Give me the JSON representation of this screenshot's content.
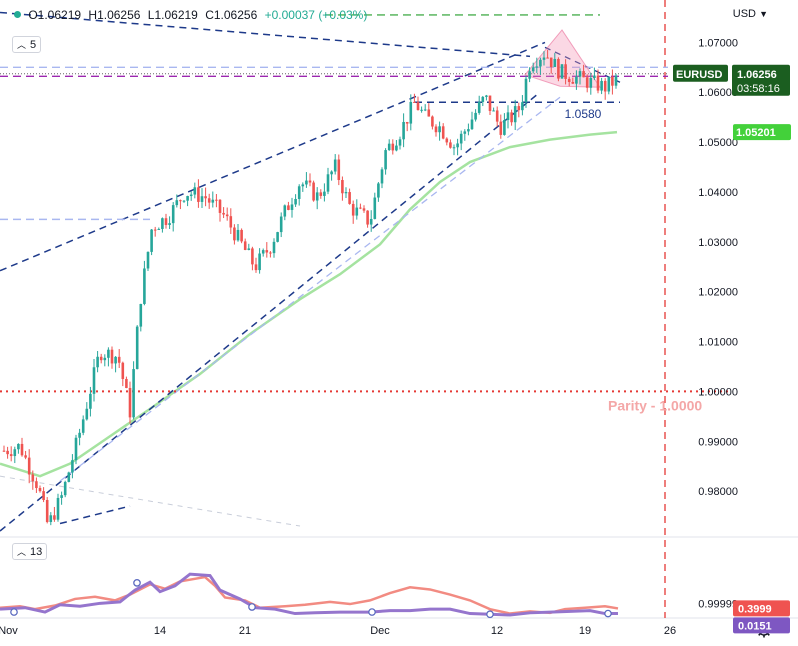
{
  "instrument": {
    "symbol": "EURUSD",
    "currency": "USD",
    "ohlc": {
      "open": "O1.06219",
      "high": "H1.06256",
      "low": "L1.06219",
      "close": "C1.06256",
      "change": "+0.00037 (+0.03%)"
    },
    "last_price": "1.06256",
    "countdown": "03:58:16"
  },
  "pane_labels": {
    "main_setting": "5",
    "osc_setting": "13"
  },
  "colors": {
    "up": "#26a69a",
    "down": "#ef5350",
    "ma": "#a5e3a0",
    "trend": "#1e3a8a",
    "trend_light": "#a9b7f0",
    "purple": "#9c27b0",
    "green_dash": "#4caf50",
    "parity": "#e53935",
    "parity_text": "#f4a7a7",
    "osc_red": "#f28b82",
    "osc_purple": "#9575cd"
  },
  "chart_data": [
    {
      "type": "candlestick",
      "title": "EURUSD",
      "x": [
        "Nov",
        "14",
        "21",
        "Dec",
        "12",
        "19",
        "26"
      ],
      "y_ticks": [
        "0.98000",
        "0.99000",
        "1.00000",
        "1.01000",
        "1.02000",
        "1.03000",
        "1.04000",
        "1.05000",
        "1.06000",
        "1.07000"
      ],
      "ylim": [
        0.971,
        1.0785
      ],
      "grid": false,
      "series": [
        {
          "name": "EURUSD",
          "label": "1.06256"
        },
        {
          "name": "",
          "label": "1.05201"
        }
      ],
      "annotations": {
        "support_label": "1.0580",
        "parity_label": "Parity - 1.0000",
        "parity_level": 1.0
      }
    },
    {
      "type": "line",
      "series": [
        {
          "name": "",
          "label": "0.3999",
          "color": "#f28b82"
        },
        {
          "name": "",
          "label": "0.0151",
          "color": "#9575cd"
        }
      ],
      "y_ticks": [
        "0.99999"
      ]
    }
  ]
}
